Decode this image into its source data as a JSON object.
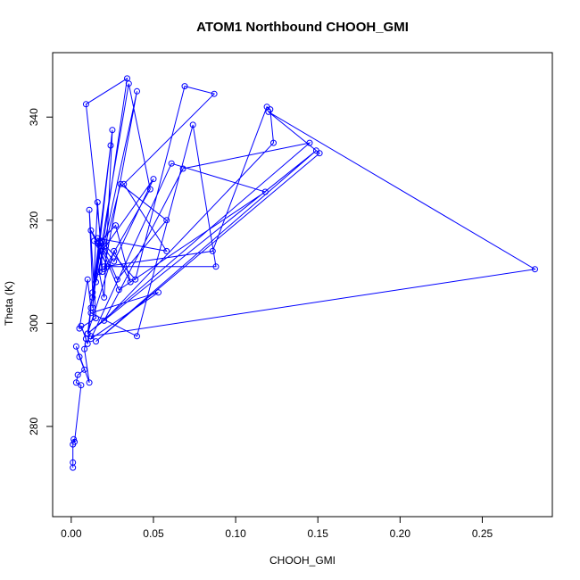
{
  "chart_data": {
    "type": "line",
    "title": "ATOM1 Northbound CHOOH_GMI",
    "xlabel": "CHOOH_GMI",
    "ylabel": "Theta (K)",
    "xlim": [
      -0.0113,
      0.2926
    ],
    "ylim": [
      262.5,
      352.5
    ],
    "x_ticks": [
      0.0,
      0.05,
      0.1,
      0.15,
      0.2,
      0.25
    ],
    "x_tick_labels": [
      "0.00",
      "0.05",
      "0.10",
      "0.15",
      "0.20",
      "0.25"
    ],
    "y_ticks": [
      280,
      300,
      320,
      340
    ],
    "y_tick_labels": [
      "280",
      "300",
      "320",
      "340"
    ],
    "grid": false,
    "color": "#0000ff",
    "series": [
      {
        "x": [
          0.001,
          0.001,
          0.001,
          0.0015,
          0.002,
          0.006,
          0.003,
          0.004,
          0.008,
          0.005,
          0.003,
          0.011,
          0.008,
          0.009,
          0.006,
          0.01,
          0.012,
          0.01,
          0.005,
          0.015,
          0.011,
          0.013,
          0.018,
          0.012,
          0.022,
          0.014,
          0.016,
          0.019,
          0.016,
          0.013,
          0.025,
          0.02,
          0.017,
          0.034,
          0.009,
          0.018,
          0.027,
          0.036,
          0.026,
          0.01,
          0.024,
          0.013,
          0.035,
          0.048,
          0.02,
          0.04,
          0.015,
          0.03,
          0.058,
          0.028,
          0.018,
          0.026,
          0.05,
          0.021,
          0.039,
          0.069,
          0.087,
          0.032,
          0.058,
          0.016,
          0.029,
          0.118,
          0.061,
          0.012,
          0.053,
          0.012,
          0.04,
          0.074,
          0.088,
          0.02,
          0.086,
          0.119,
          0.121,
          0.123,
          0.02,
          0.068,
          0.145,
          0.01,
          0.149,
          0.015,
          0.151,
          0.12,
          0.282,
          0.012
        ],
        "y": [
          272.0,
          273.0,
          276.5,
          277.5,
          277.0,
          288.0,
          288.5,
          290.0,
          291.0,
          293.5,
          295.5,
          288.5,
          295.0,
          297.0,
          299.5,
          296.0,
          303.0,
          308.5,
          299.0,
          301.0,
          322.0,
          306.0,
          315.0,
          318.0,
          311.0,
          316.0,
          315.5,
          310.0,
          323.5,
          303.0,
          337.5,
          305.0,
          310.0,
          347.5,
          342.5,
          316.0,
          319.0,
          308.0,
          314.0,
          298.0,
          334.5,
          305.0,
          346.5,
          326.0,
          310.5,
          345.0,
          308.0,
          327.0,
          320.0,
          308.5,
          315.5,
          312.0,
          328.0,
          315.0,
          308.5,
          346.0,
          344.5,
          327.0,
          314.0,
          316.5,
          306.5,
          325.5,
          331.0,
          297.0,
          306.0,
          302.0,
          297.5,
          338.5,
          311.0,
          311.0,
          314.0,
          342.0,
          341.5,
          335.0,
          300.5,
          330.0,
          335.0,
          298.0,
          333.5,
          296.5,
          333.0,
          341.0,
          310.5,
          297.5
        ]
      }
    ]
  }
}
